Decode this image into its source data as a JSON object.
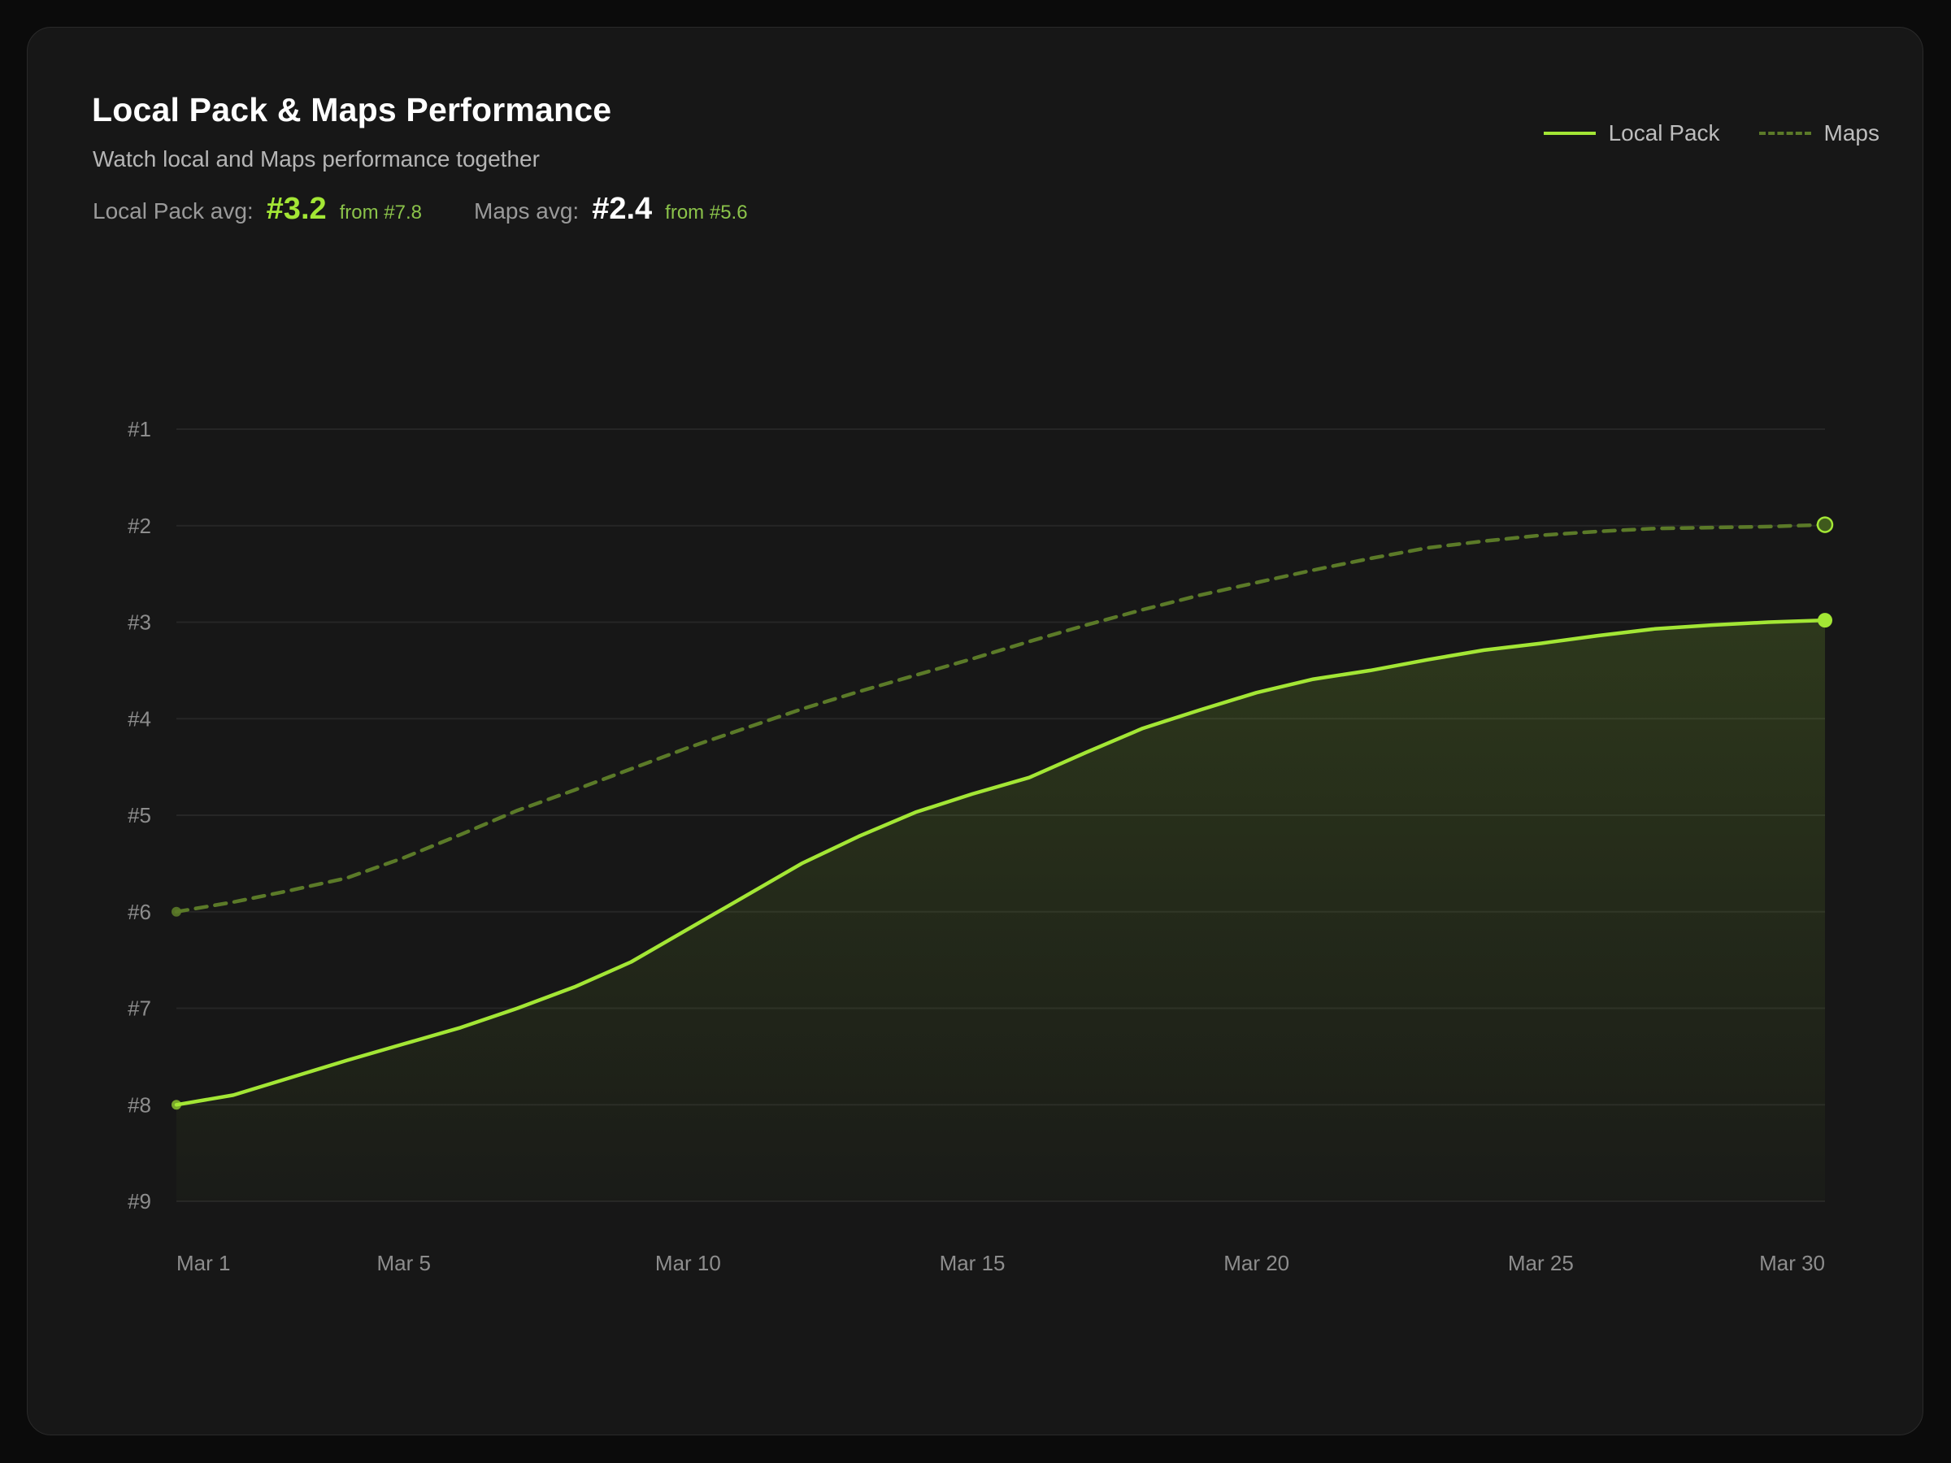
{
  "header": {
    "title": "Local Pack & Maps Performance",
    "subtitle": "Watch local and Maps performance together"
  },
  "stats": {
    "local_pack": {
      "label": "Local Pack avg:",
      "value": "#3.2",
      "from": "from #7.8"
    },
    "maps": {
      "label": "Maps avg:",
      "value": "#2.4",
      "from": "from #5.6"
    }
  },
  "legend": {
    "local_pack": "Local Pack",
    "maps": "Maps"
  },
  "colors": {
    "local_pack": "#a3e635",
    "maps": "#5b7a28",
    "grid": "#262626",
    "background": "#171717"
  },
  "chart_data": {
    "type": "line",
    "xlabel": "",
    "ylabel": "",
    "y_reversed": true,
    "ylim": [
      1,
      9
    ],
    "xlim": [
      1,
      30
    ],
    "y_ticks": [
      "#1",
      "#2",
      "#3",
      "#4",
      "#5",
      "#6",
      "#7",
      "#8",
      "#9"
    ],
    "y_tick_values": [
      1,
      2,
      3,
      4,
      5,
      6,
      7,
      8,
      9
    ],
    "x_ticks": [
      "Mar 1",
      "Mar 5",
      "Mar 10",
      "Mar 15",
      "Mar 20",
      "Mar 25",
      "Mar 30"
    ],
    "x_tick_days": [
      1,
      5,
      10,
      15,
      20,
      25,
      30
    ],
    "grid": true,
    "legend_position": "top-right",
    "series": [
      {
        "name": "Local Pack",
        "style": "solid",
        "area_fill": true,
        "x": [
          1,
          2,
          3,
          4,
          5,
          6,
          7,
          8,
          9,
          10,
          11,
          12,
          13,
          14,
          15,
          16,
          17,
          18,
          19,
          20,
          21,
          22,
          23,
          24,
          25,
          26,
          27,
          28,
          29,
          30
        ],
        "values": [
          8.0,
          7.9,
          7.72,
          7.54,
          7.37,
          7.2,
          7.0,
          6.78,
          6.52,
          6.18,
          5.84,
          5.5,
          5.22,
          4.97,
          4.78,
          4.61,
          4.35,
          4.1,
          3.91,
          3.73,
          3.59,
          3.5,
          3.39,
          3.29,
          3.22,
          3.14,
          3.07,
          3.03,
          3.0,
          2.98
        ]
      },
      {
        "name": "Maps",
        "style": "dashed",
        "area_fill": false,
        "x": [
          1,
          2,
          3,
          4,
          5,
          6,
          7,
          8,
          9,
          10,
          11,
          12,
          13,
          14,
          15,
          16,
          17,
          18,
          19,
          20,
          21,
          22,
          23,
          24,
          25,
          26,
          27,
          28,
          29,
          30
        ],
        "values": [
          6.0,
          5.9,
          5.78,
          5.65,
          5.44,
          5.2,
          4.95,
          4.74,
          4.52,
          4.3,
          4.1,
          3.9,
          3.72,
          3.55,
          3.38,
          3.2,
          3.03,
          2.87,
          2.72,
          2.59,
          2.46,
          2.34,
          2.23,
          2.16,
          2.1,
          2.06,
          2.03,
          2.02,
          2.01,
          1.99
        ]
      }
    ]
  }
}
